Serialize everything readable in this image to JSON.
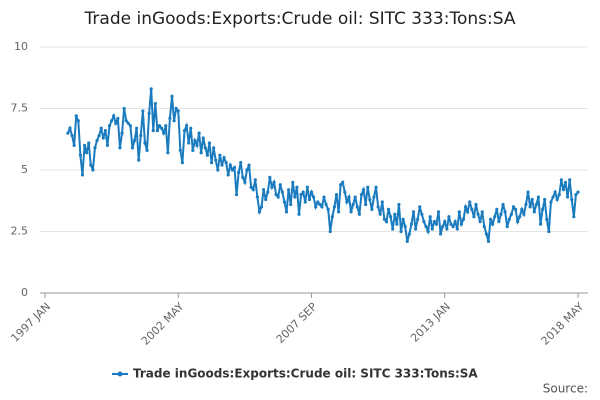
{
  "chart_data": {
    "type": "line",
    "title": "Trade inGoods:Exports:Crude oil: SITC 333:Tons:SA",
    "source": "Source:",
    "categories": [
      "1997 JAN",
      null,
      null,
      null,
      null,
      null,
      null,
      null,
      null,
      null,
      null,
      null,
      null,
      null,
      null,
      null,
      null,
      null,
      null,
      null,
      null,
      null,
      null,
      null,
      null,
      null,
      null,
      null,
      null,
      null,
      null,
      null,
      null,
      null,
      null,
      null,
      null,
      null,
      null,
      null,
      null,
      null,
      null,
      null,
      null,
      null,
      null,
      null,
      null,
      null,
      null,
      null,
      null,
      null,
      null,
      null,
      null,
      null,
      null,
      null,
      null,
      null,
      null,
      null,
      "2002 MAY",
      null,
      null,
      null,
      null,
      null,
      null,
      null,
      null,
      null,
      null,
      null,
      null,
      null,
      null,
      null,
      null,
      null,
      null,
      null,
      null,
      null,
      null,
      null,
      null,
      null,
      null,
      null,
      null,
      null,
      null,
      null,
      null,
      null,
      null,
      null,
      null,
      null,
      null,
      null,
      null,
      null,
      null,
      null,
      null,
      null,
      null,
      null,
      null,
      null,
      null,
      null,
      null,
      null,
      null,
      null,
      null,
      null,
      null,
      null,
      null,
      null,
      null,
      null,
      "2007 SEP",
      null,
      null,
      null,
      null,
      null,
      null,
      null,
      null,
      null,
      null,
      null,
      null,
      null,
      null,
      null,
      null,
      null,
      null,
      null,
      null,
      null,
      null,
      null,
      null,
      null,
      null,
      null,
      null,
      null,
      null,
      null,
      null,
      null,
      null,
      null,
      null,
      null,
      null,
      null,
      null,
      null,
      null,
      null,
      null,
      null,
      null,
      null,
      null,
      null,
      null,
      null,
      null,
      null,
      null,
      null,
      null,
      null,
      null,
      null,
      null,
      null,
      null,
      null,
      "2013 JAN",
      null,
      null,
      null,
      null,
      null,
      null,
      null,
      null,
      null,
      null,
      null,
      null,
      null,
      null,
      null,
      null,
      null,
      null,
      null,
      null,
      null,
      null,
      null,
      null,
      null,
      null,
      null,
      null,
      null,
      null,
      null,
      null,
      null,
      null,
      null,
      null,
      null,
      null,
      null,
      null,
      null,
      null,
      null,
      null,
      null,
      null,
      null,
      null,
      null,
      null,
      null,
      null,
      null,
      null,
      null,
      null,
      null,
      null,
      null,
      null,
      null,
      null,
      null,
      "2018 MAY"
    ],
    "series": [
      {
        "name": "Trade inGoods:Exports:Crude oil: SITC 333:Tons:SA",
        "color": "#1a7bbf",
        "values": [
          null,
          null,
          null,
          null,
          null,
          null,
          null,
          null,
          null,
          null,
          null,
          6.5,
          6.7,
          6.4,
          6.0,
          7.2,
          7.0,
          5.6,
          4.8,
          6.0,
          5.7,
          6.1,
          5.2,
          5.0,
          5.9,
          6.2,
          6.4,
          6.7,
          6.3,
          6.6,
          6.0,
          6.8,
          7.0,
          7.2,
          6.9,
          7.1,
          5.9,
          6.5,
          7.5,
          7.0,
          6.9,
          6.8,
          5.9,
          6.2,
          6.7,
          5.4,
          6.4,
          7.4,
          6.1,
          5.8,
          7.3,
          8.3,
          6.6,
          7.7,
          6.6,
          6.8,
          6.7,
          6.5,
          6.8,
          5.7,
          7.1,
          8.0,
          7.0,
          7.5,
          7.4,
          5.8,
          5.3,
          6.6,
          6.8,
          6.1,
          6.7,
          5.8,
          6.2,
          6.0,
          6.5,
          5.7,
          6.3,
          5.9,
          5.6,
          6.1,
          5.3,
          5.9,
          5.4,
          5.0,
          5.6,
          5.2,
          5.5,
          5.3,
          4.8,
          5.2,
          5.0,
          5.1,
          4.0,
          4.9,
          5.3,
          4.7,
          4.5,
          5.0,
          5.2,
          4.3,
          4.2,
          4.6,
          3.9,
          3.3,
          3.5,
          4.2,
          3.8,
          4.1,
          4.7,
          4.3,
          4.5,
          4.0,
          3.9,
          4.4,
          4.1,
          3.7,
          3.3,
          4.2,
          3.6,
          4.5,
          3.9,
          4.3,
          3.2,
          4.0,
          4.1,
          3.7,
          4.3,
          3.8,
          4.1,
          3.9,
          3.5,
          3.7,
          3.6,
          3.5,
          3.9,
          3.6,
          3.4,
          2.5,
          3.1,
          3.5,
          4.0,
          3.3,
          4.4,
          4.5,
          4.1,
          3.7,
          3.9,
          3.3,
          3.6,
          3.9,
          3.5,
          3.2,
          4.0,
          4.2,
          3.6,
          4.3,
          3.8,
          3.4,
          3.9,
          4.3,
          3.5,
          3.2,
          3.7,
          3.0,
          2.9,
          3.4,
          3.1,
          2.6,
          3.2,
          2.8,
          3.6,
          2.5,
          3.0,
          2.7,
          2.1,
          2.4,
          2.8,
          3.3,
          2.6,
          3.0,
          3.5,
          3.2,
          2.9,
          2.7,
          2.5,
          3.1,
          2.6,
          2.9,
          2.8,
          3.3,
          2.4,
          2.7,
          2.9,
          2.6,
          3.1,
          2.8,
          2.7,
          2.9,
          2.6,
          3.3,
          2.8,
          3.0,
          3.5,
          3.3,
          3.7,
          3.4,
          3.1,
          3.6,
          3.2,
          2.9,
          3.3,
          2.7,
          2.4,
          2.1,
          3.0,
          2.8,
          3.1,
          3.4,
          2.9,
          3.2,
          3.6,
          3.3,
          2.7,
          3.0,
          3.2,
          3.5,
          3.4,
          2.9,
          3.1,
          3.4,
          3.2,
          3.6,
          4.1,
          3.5,
          3.8,
          3.3,
          3.6,
          3.9,
          2.8,
          3.4,
          3.8,
          3.0,
          2.5,
          3.7,
          3.9,
          4.1,
          3.8,
          4.0,
          4.6,
          4.2,
          4.5,
          3.9,
          4.6,
          3.8,
          3.1,
          4.0,
          4.1
        ]
      }
    ],
    "ylim": [
      0,
      10
    ],
    "yticks": [
      0,
      {
        "value": 2.5,
        "label": "2.5"
      },
      5,
      {
        "value": 7.5,
        "label": "7.5"
      },
      10
    ],
    "grid": true
  }
}
